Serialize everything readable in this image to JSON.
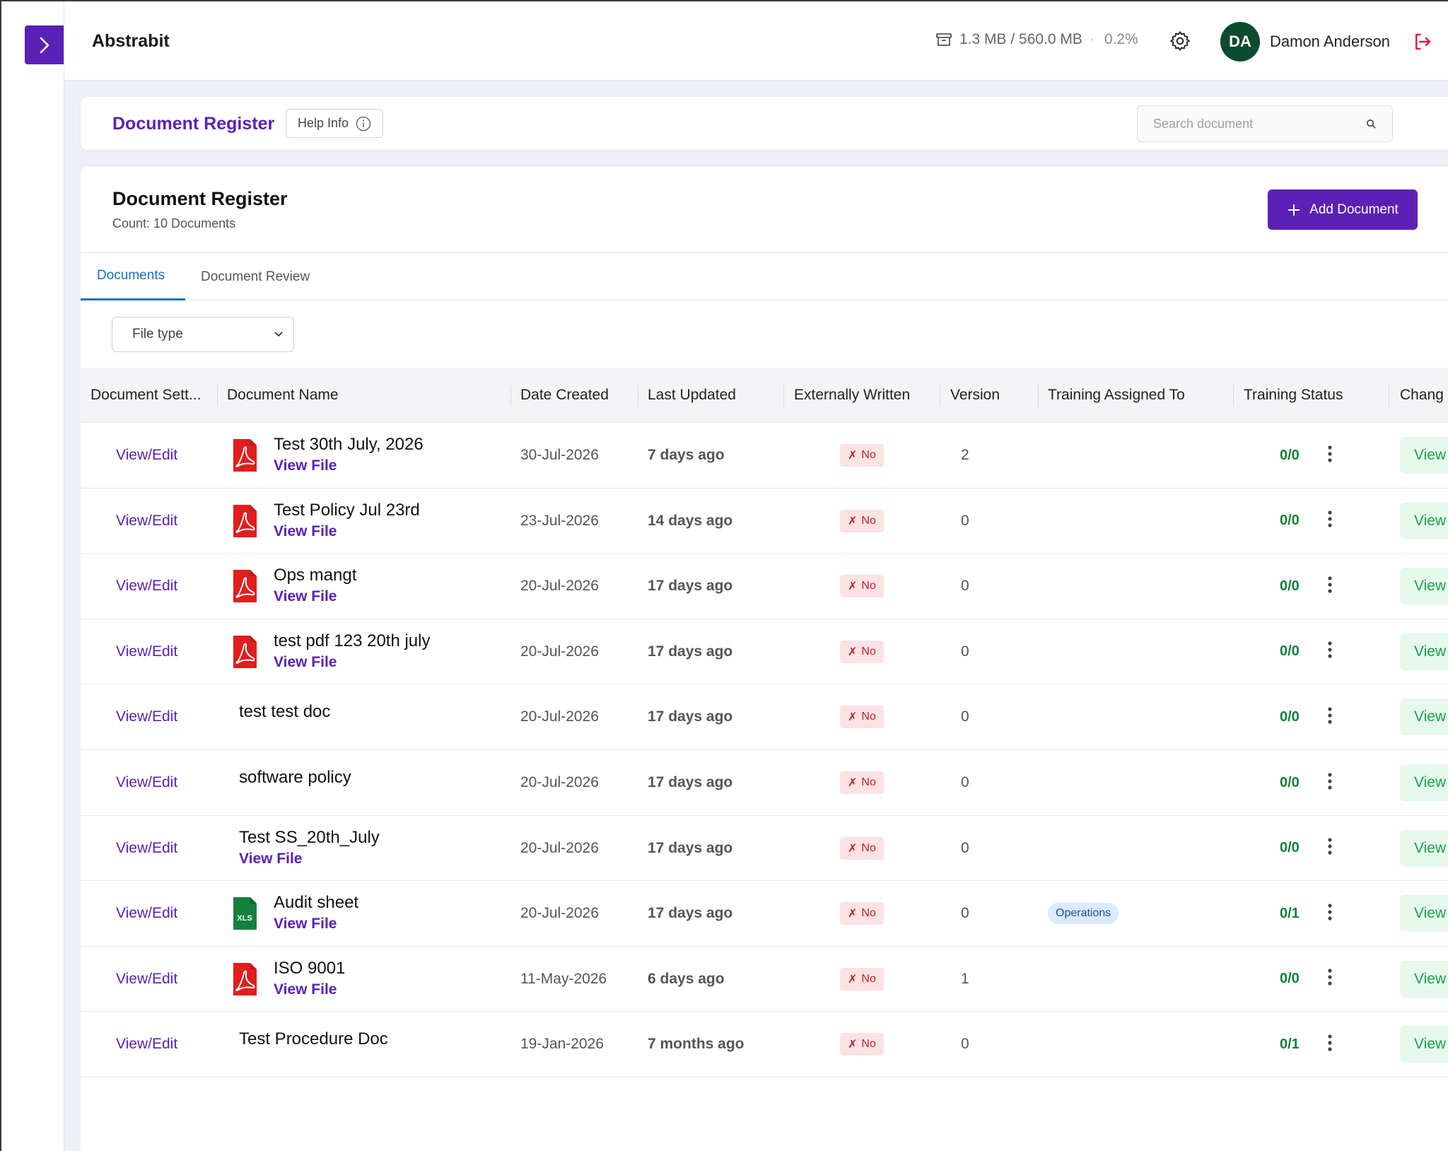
{
  "header": {
    "app_title": "Abstrabit",
    "storage_text": "1.3 MB / 560.0 MB",
    "storage_pct": "0.2%",
    "user_initials": "DA",
    "user_name": "Damon Anderson"
  },
  "page_bar": {
    "title": "Document Register",
    "help_label": "Help Info",
    "search_placeholder": "Search document"
  },
  "list": {
    "title": "Document Register",
    "count_label": "Count: 10 Documents",
    "add_label": "Add Document",
    "tabs": [
      "Documents",
      "Document Review"
    ],
    "active_tab": "Documents",
    "filter_placeholder": "File type"
  },
  "table": {
    "columns": [
      "Document Sett...",
      "Document Name",
      "Date Created",
      "Last Updated",
      "Externally Written",
      "Version",
      "Training Assigned To",
      "Training Status",
      "Chang"
    ],
    "action_label": "View/Edit",
    "view_file_label": "View File",
    "no_label": "No",
    "change_view_label": "View",
    "rows": [
      {
        "name": "Test 30th July, 2026",
        "icon": "pdf-icon",
        "has_file": true,
        "created": "30-Jul-2026",
        "updated": "7 days ago",
        "version": "2",
        "assigned": "",
        "status": "0/0"
      },
      {
        "name": "Test Policy Jul 23rd",
        "icon": "pdf-icon",
        "has_file": true,
        "created": "23-Jul-2026",
        "updated": "14 days ago",
        "version": "0",
        "assigned": "",
        "status": "0/0"
      },
      {
        "name": "Ops mangt",
        "icon": "pdf-icon",
        "has_file": true,
        "created": "20-Jul-2026",
        "updated": "17 days ago",
        "version": "0",
        "assigned": "",
        "status": "0/0"
      },
      {
        "name": "test pdf 123 20th july",
        "icon": "pdf-icon",
        "has_file": true,
        "created": "20-Jul-2026",
        "updated": "17 days ago",
        "version": "0",
        "assigned": "",
        "status": "0/0"
      },
      {
        "name": "test test doc",
        "icon": "",
        "has_file": false,
        "created": "20-Jul-2026",
        "updated": "17 days ago",
        "version": "0",
        "assigned": "",
        "status": "0/0"
      },
      {
        "name": "software policy",
        "icon": "",
        "has_file": false,
        "created": "20-Jul-2026",
        "updated": "17 days ago",
        "version": "0",
        "assigned": "",
        "status": "0/0"
      },
      {
        "name": "Test SS_20th_July",
        "icon": "",
        "has_file": true,
        "created": "20-Jul-2026",
        "updated": "17 days ago",
        "version": "0",
        "assigned": "",
        "status": "0/0"
      },
      {
        "name": "Audit sheet",
        "icon": "xls-icon",
        "has_file": true,
        "created": "20-Jul-2026",
        "updated": "17 days ago",
        "version": "0",
        "assigned": "Operations",
        "status": "0/1"
      },
      {
        "name": "ISO 9001",
        "icon": "pdf-icon",
        "has_file": true,
        "created": "11-May-2026",
        "updated": "6 days ago",
        "version": "1",
        "assigned": "",
        "status": "0/0"
      },
      {
        "name": "Test Procedure Doc",
        "icon": "",
        "has_file": false,
        "created": "19-Jan-2026",
        "updated": "7 months ago",
        "version": "0",
        "assigned": "",
        "status": "0/1"
      }
    ]
  },
  "colors": {
    "brand": "#5b21b6",
    "tab_active": "#1a6fc4",
    "status_green": "#15803d",
    "badge_red_bg": "#fde2e4",
    "avatar_bg": "#0d4b2e"
  }
}
